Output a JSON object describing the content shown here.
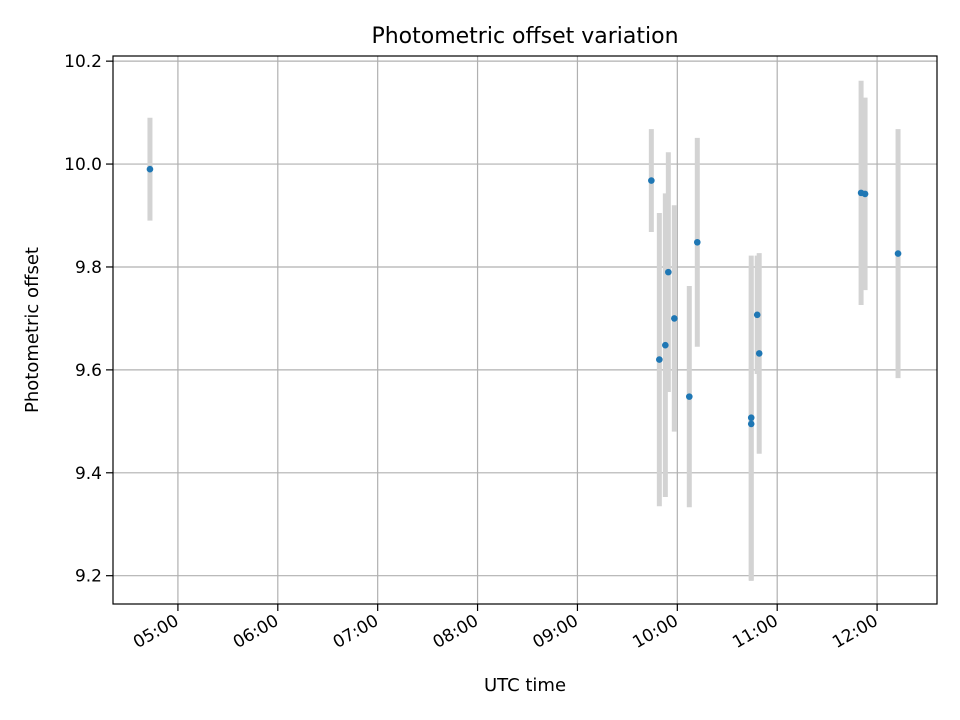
{
  "chart_data": {
    "type": "scatter",
    "title": "Photometric offset variation",
    "xlabel": "UTC time",
    "ylabel": "Photometric offset",
    "x_unit": "hours since 00:00 UTC",
    "xlim": [
      4.35,
      12.6
    ],
    "ylim": [
      9.145,
      10.21
    ],
    "x_ticks": [
      {
        "value": 5,
        "label": "05:00"
      },
      {
        "value": 6,
        "label": "06:00"
      },
      {
        "value": 7,
        "label": "07:00"
      },
      {
        "value": 8,
        "label": "08:00"
      },
      {
        "value": 9,
        "label": "09:00"
      },
      {
        "value": 10,
        "label": "10:00"
      },
      {
        "value": 11,
        "label": "11:00"
      },
      {
        "value": 12,
        "label": "12:00"
      }
    ],
    "y_ticks": [
      {
        "value": 9.2,
        "label": "9.2"
      },
      {
        "value": 9.4,
        "label": "9.4"
      },
      {
        "value": 9.6,
        "label": "9.6"
      },
      {
        "value": 9.8,
        "label": "9.8"
      },
      {
        "value": 10.0,
        "label": "10.0"
      },
      {
        "value": 10.2,
        "label": "10.2"
      }
    ],
    "grid": true,
    "colors": {
      "marker": "#1f77b4",
      "errorbar": "#d3d3d3",
      "grid": "#b0b0b0"
    },
    "points": [
      {
        "time": "04:43",
        "x": 4.72,
        "y": 9.99,
        "err": 0.1
      },
      {
        "time": "09:44",
        "x": 9.74,
        "y": 9.968,
        "err": 0.1
      },
      {
        "time": "09:49",
        "x": 9.82,
        "y": 9.62,
        "err": 0.285
      },
      {
        "time": "09:53",
        "x": 9.88,
        "y": 9.648,
        "err": 0.295
      },
      {
        "time": "09:55",
        "x": 9.91,
        "y": 9.79,
        "err": 0.233
      },
      {
        "time": "09:58",
        "x": 9.97,
        "y": 9.7,
        "err": 0.22
      },
      {
        "time": "10:07",
        "x": 10.12,
        "y": 9.548,
        "err": 0.215
      },
      {
        "time": "10:12",
        "x": 10.2,
        "y": 9.848,
        "err": 0.203
      },
      {
        "time": "10:44",
        "x": 10.74,
        "y": 9.507,
        "err": 0.315
      },
      {
        "time": "10:44",
        "x": 10.74,
        "y": 9.495,
        "err": 0.305
      },
      {
        "time": "10:48",
        "x": 10.8,
        "y": 9.707,
        "err": 0.115
      },
      {
        "time": "10:49",
        "x": 10.82,
        "y": 9.632,
        "err": 0.195
      },
      {
        "time": "11:50",
        "x": 11.84,
        "y": 9.944,
        "err": 0.218
      },
      {
        "time": "11:53",
        "x": 11.88,
        "y": 9.942,
        "err": 0.187
      },
      {
        "time": "12:13",
        "x": 12.21,
        "y": 9.826,
        "err": 0.242
      }
    ]
  }
}
